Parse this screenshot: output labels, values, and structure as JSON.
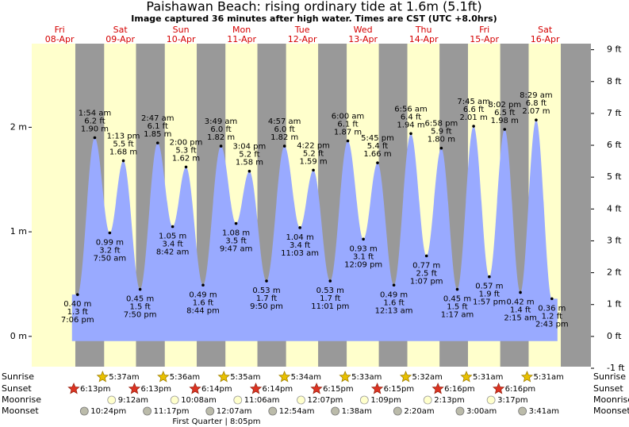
{
  "chart_data": {
    "type": "tide",
    "title": "Paishawan Beach: rising  ordinary tide at 1.6m (5.1ft)",
    "subtitle": "Image captured 36 minutes after high water. Times are CST (UTC +8.0hrs)",
    "ylim": [
      -0.29,
      2.8
    ],
    "yticks": [
      {
        "value": 0,
        "label": "0 m"
      },
      {
        "value": 1,
        "label": "1 m"
      },
      {
        "value": 2,
        "label": "2 m"
      }
    ],
    "y2lim": [
      -0.95,
      9.19
    ],
    "y2ticks": [
      {
        "value": -1,
        "label": "-1 ft"
      },
      {
        "value": 0,
        "label": "0 ft"
      },
      {
        "value": 1,
        "label": "1 ft"
      },
      {
        "value": 2,
        "label": "2 ft"
      },
      {
        "value": 3,
        "label": "3 ft"
      },
      {
        "value": 4,
        "label": "4 ft"
      },
      {
        "value": 5,
        "label": "5 ft"
      },
      {
        "value": 6,
        "label": "6 ft"
      },
      {
        "value": 7,
        "label": "7 ft"
      },
      {
        "value": 8,
        "label": "8 ft"
      },
      {
        "value": 9,
        "label": "9 ft"
      }
    ],
    "row_labels": {
      "sunrise": "Sunrise",
      "sunset": "Sunset",
      "moonrise": "Moonrise",
      "moonset": "Moonset"
    },
    "moon_phase": "First Quarter | 8:05pm",
    "days": [
      {
        "weekday": "Fri",
        "date": "08-Apr",
        "sunrise": null,
        "sunset": "6:13pm",
        "moonrise": null,
        "moonset": "10:24pm",
        "tides": [
          {
            "time": "7:06 pm",
            "m": 0.4,
            "m_label": "0.40 m",
            "ft_label": "1.3 ft"
          }
        ]
      },
      {
        "weekday": "Sat",
        "date": "09-Apr",
        "sunrise": "5:37am",
        "sunset": "6:13pm",
        "moonrise": "9:12am",
        "moonset": "11:17pm",
        "tides": [
          {
            "time": "1:54 am",
            "m": 1.9,
            "m_label": "1.90 m",
            "ft_label": "6.2 ft"
          },
          {
            "time": "7:50 am",
            "m": 0.99,
            "m_label": "0.99 m",
            "ft_label": "3.2 ft"
          },
          {
            "time": "1:13 pm",
            "m": 1.68,
            "m_label": "1.68 m",
            "ft_label": "5.5 ft"
          },
          {
            "time": "7:50 pm",
            "m": 0.45,
            "m_label": "0.45 m",
            "ft_label": "1.5 ft"
          }
        ]
      },
      {
        "weekday": "Sun",
        "date": "10-Apr",
        "sunrise": "5:36am",
        "sunset": "6:14pm",
        "moonrise": "10:08am",
        "moonset": null,
        "tides": [
          {
            "time": "2:47 am",
            "m": 1.85,
            "m_label": "1.85 m",
            "ft_label": "6.1 ft"
          },
          {
            "time": "8:42 am",
            "m": 1.05,
            "m_label": "1.05 m",
            "ft_label": "3.4 ft"
          },
          {
            "time": "2:00 pm",
            "m": 1.62,
            "m_label": "1.62 m",
            "ft_label": "5.3 ft"
          },
          {
            "time": "8:44 pm",
            "m": 0.49,
            "m_label": "0.49 m",
            "ft_label": "1.6 ft"
          }
        ]
      },
      {
        "weekday": "Mon",
        "date": "11-Apr",
        "sunrise": "5:35am",
        "sunset": "6:14pm",
        "moonrise": "11:06am",
        "moonset": "12:07am",
        "tides": [
          {
            "time": "3:49 am",
            "m": 1.82,
            "m_label": "1.82 m",
            "ft_label": "6.0 ft"
          },
          {
            "time": "9:47 am",
            "m": 1.08,
            "m_label": "1.08 m",
            "ft_label": "3.5 ft"
          },
          {
            "time": "3:04 pm",
            "m": 1.58,
            "m_label": "1.58 m",
            "ft_label": "5.2 ft"
          },
          {
            "time": "9:50 pm",
            "m": 0.53,
            "m_label": "0.53 m",
            "ft_label": "1.7 ft"
          }
        ]
      },
      {
        "weekday": "Tue",
        "date": "12-Apr",
        "sunrise": "5:34am",
        "sunset": "6:15pm",
        "moonrise": "12:07pm",
        "moonset": "12:54am",
        "tides": [
          {
            "time": "4:57 am",
            "m": 1.82,
            "m_label": "1.82 m",
            "ft_label": "6.0 ft"
          },
          {
            "time": "11:03 am",
            "m": 1.04,
            "m_label": "1.04 m",
            "ft_label": "3.4 ft"
          },
          {
            "time": "4:22 pm",
            "m": 1.59,
            "m_label": "1.59 m",
            "ft_label": "5.2 ft"
          },
          {
            "time": "11:01 pm",
            "m": 0.53,
            "m_label": "0.53 m",
            "ft_label": "1.7 ft"
          }
        ]
      },
      {
        "weekday": "Wed",
        "date": "13-Apr",
        "sunrise": "5:33am",
        "sunset": "6:15pm",
        "moonrise": "1:09pm",
        "moonset": "1:38am",
        "tides": [
          {
            "time": "6:00 am",
            "m": 1.87,
            "m_label": "1.87 m",
            "ft_label": "6.1 ft"
          },
          {
            "time": "12:09 pm",
            "m": 0.93,
            "m_label": "0.93 m",
            "ft_label": "3.1 ft"
          },
          {
            "time": "5:45 pm",
            "m": 1.66,
            "m_label": "1.66 m",
            "ft_label": "5.4 ft"
          }
        ]
      },
      {
        "weekday": "Thu",
        "date": "14-Apr",
        "sunrise": "5:32am",
        "sunset": "6:16pm",
        "moonrise": "2:13pm",
        "moonset": "2:20am",
        "tides": [
          {
            "time": "12:13 am",
            "m": 0.49,
            "m_label": "0.49 m",
            "ft_label": "1.6 ft"
          },
          {
            "time": "6:56 am",
            "m": 1.94,
            "m_label": "1.94 m",
            "ft_label": "6.4 ft"
          },
          {
            "time": "1:07 pm",
            "m": 0.77,
            "m_label": "0.77 m",
            "ft_label": "2.5 ft"
          },
          {
            "time": "6:58 pm",
            "m": 1.8,
            "m_label": "1.80 m",
            "ft_label": "5.9 ft"
          }
        ]
      },
      {
        "weekday": "Fri",
        "date": "15-Apr",
        "sunrise": "5:31am",
        "sunset": "6:16pm",
        "moonrise": "3:17pm",
        "moonset": "3:00am",
        "tides": [
          {
            "time": "1:17 am",
            "m": 0.45,
            "m_label": "0.45 m",
            "ft_label": "1.5 ft"
          },
          {
            "time": "7:45 am",
            "m": 2.01,
            "m_label": "2.01 m",
            "ft_label": "6.6 ft"
          },
          {
            "time": "1:57 pm",
            "m": 0.57,
            "m_label": "0.57 m",
            "ft_label": "1.9 ft"
          },
          {
            "time": "8:02 pm",
            "m": 1.98,
            "m_label": "1.98 m",
            "ft_label": "6.5 ft"
          }
        ]
      },
      {
        "weekday": "Sat",
        "date": "16-Apr",
        "sunrise": "5:31am",
        "sunset": null,
        "moonrise": null,
        "moonset": "3:41am",
        "tides": [
          {
            "time": "2:15 am",
            "m": 0.42,
            "m_label": "0.42 m",
            "ft_label": "1.4 ft"
          },
          {
            "time": "8:29 am",
            "m": 2.07,
            "m_label": "2.07 m",
            "ft_label": "6.8 ft"
          },
          {
            "time": "2:43 pm",
            "m": 0.36,
            "m_label": "0.36 m",
            "ft_label": "1.2 ft"
          }
        ]
      }
    ]
  }
}
